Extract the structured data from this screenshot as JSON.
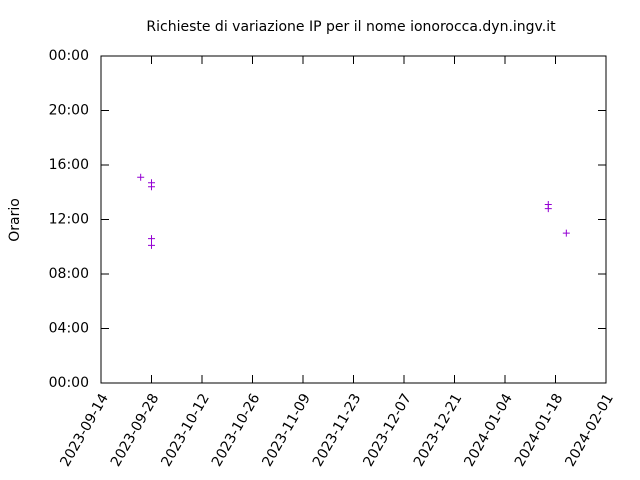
{
  "chart_data": {
    "type": "scatter",
    "title": "Richieste di variazione IP per il nome ionorocca.dyn.ingv.it",
    "y_label": "Orario",
    "x": [
      "2023-09-25",
      "2023-09-28",
      "2023-09-28",
      "2023-09-28",
      "2023-09-28",
      "2024-01-16",
      "2024-01-16",
      "2024-01-21"
    ],
    "values": [
      15.1,
      14.7,
      14.4,
      10.6,
      10.1,
      13.1,
      12.8,
      11.0
    ],
    "color": "#9400d3",
    "xlim": [
      "2023-09-14",
      "2024-02-01"
    ],
    "xticks": [
      "2023-09-14",
      "2023-09-28",
      "2023-10-12",
      "2023-10-26",
      "2023-11-09",
      "2023-11-23",
      "2023-12-07",
      "2023-12-21",
      "2024-01-04",
      "2024-01-18",
      "2024-02-01"
    ],
    "ylim": [
      0,
      24
    ],
    "yticks": [
      {
        "value": 0,
        "label": "00:00"
      },
      {
        "value": 4,
        "label": "04:00"
      },
      {
        "value": 8,
        "label": "08:00"
      },
      {
        "value": 12,
        "label": "12:00"
      },
      {
        "value": 16,
        "label": "16:00"
      },
      {
        "value": 20,
        "label": "20:00"
      },
      {
        "value": 24,
        "label": "00:00"
      }
    ]
  }
}
